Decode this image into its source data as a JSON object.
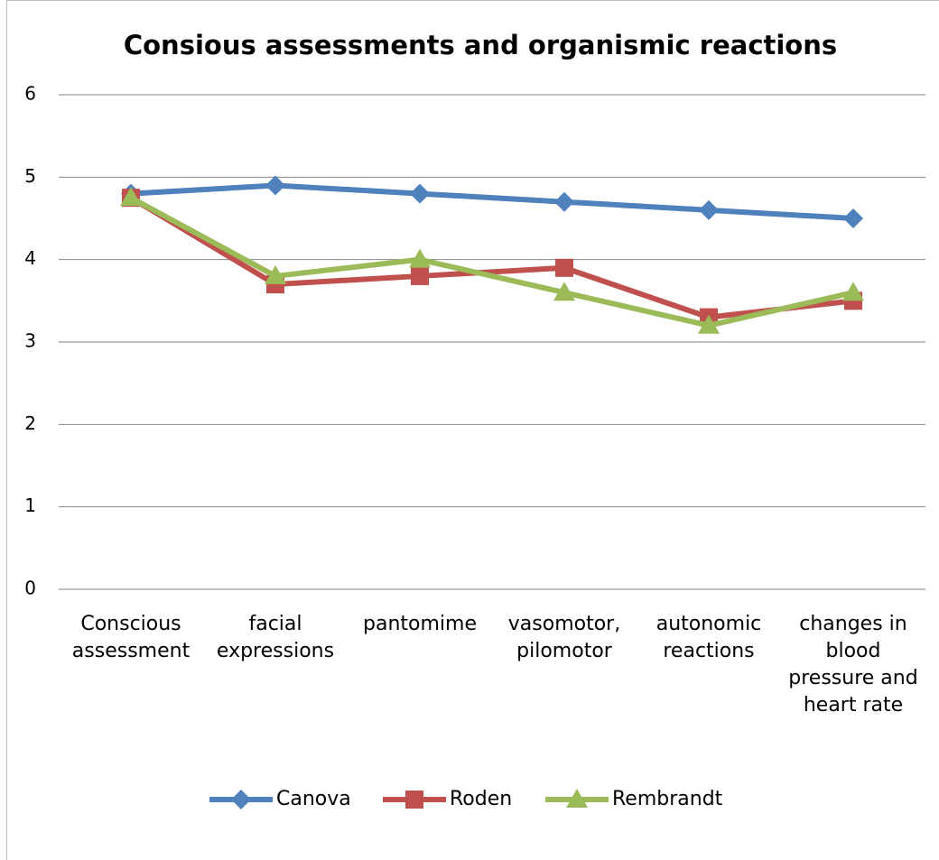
{
  "chart_data": {
    "type": "line",
    "title": "Consious assessments and organismic reactions",
    "categories": [
      "Conscious assessment",
      "facial expressions",
      "pantomime",
      "vasomotor, pilomotor",
      "autonomic reactions",
      "changes in blood pressure and heart rate"
    ],
    "series": [
      {
        "name": "Canova",
        "color": "#4f81bd",
        "marker": "diamond",
        "values": [
          4.8,
          4.9,
          4.8,
          4.7,
          4.6,
          4.5
        ]
      },
      {
        "name": "Roden",
        "color": "#c0504d",
        "marker": "square",
        "values": [
          4.75,
          3.7,
          3.8,
          3.9,
          3.3,
          3.5
        ]
      },
      {
        "name": "Rembrandt",
        "color": "#9bbb59",
        "marker": "triangle",
        "values": [
          4.75,
          3.8,
          4.0,
          3.6,
          3.2,
          3.6
        ]
      }
    ],
    "ylim": [
      0,
      6
    ],
    "yticks": [
      0,
      1,
      2,
      3,
      4,
      5,
      6
    ],
    "grid": true,
    "legend": "bottom"
  }
}
